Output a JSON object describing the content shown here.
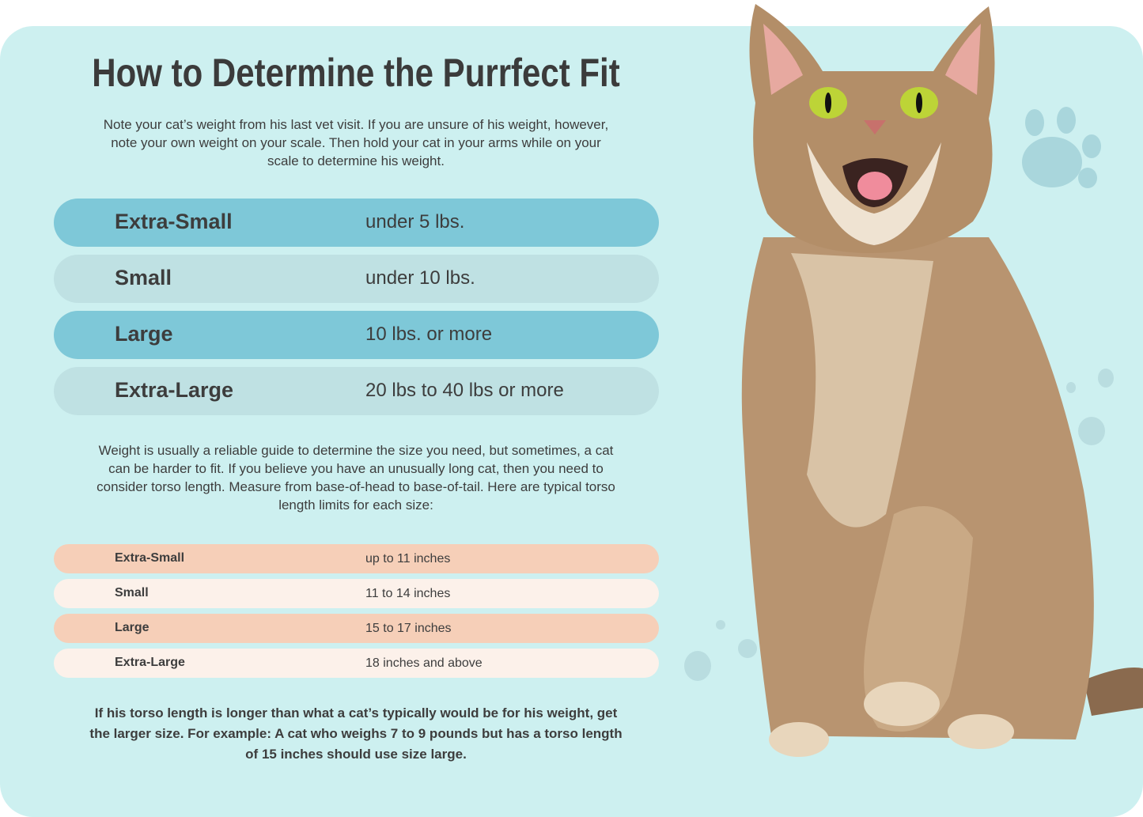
{
  "title": "How to Determine the Purrfect Fit",
  "intro": [
    "Note your cat’s weight from his last vet visit. If you are unsure of his weight, however,",
    "note your own weight on your scale. Then hold your cat in your arms while on your",
    "scale to determine his weight."
  ],
  "weight_table": [
    {
      "size": "Extra-Small",
      "weight": "under 5 lbs."
    },
    {
      "size": "Small",
      "weight": "under 10 lbs."
    },
    {
      "size": "Large",
      "weight": "10 lbs. or more"
    },
    {
      "size": "Extra-Large",
      "weight": "20 lbs to 40 lbs or more"
    }
  ],
  "torso_intro": [
    "Weight is usually a reliable guide to determine the size you need, but sometimes, a cat",
    "can be harder to fit. If you believe you have an unusually long cat, then you need to",
    "consider torso length. Measure from base-of-head to base-of-tail. Here are typical torso",
    "length limits for each size:"
  ],
  "torso_table": [
    {
      "size": "Extra-Small",
      "length": "up to 11 inches"
    },
    {
      "size": "Small",
      "length": "11 to 14 inches"
    },
    {
      "size": "Large",
      "length": "15 to 17 inches"
    },
    {
      "size": "Extra-Large",
      "length": "18 inches and above"
    }
  ],
  "note": [
    "If his torso length is longer than what a cat’s typically would be for his weight, get",
    "the larger size. For example: A cat who weighs 7 to 9 pounds but has a torso length",
    "of 15 inches should use size large."
  ],
  "colors": {
    "panel": "#cdf0f0",
    "weight_dark": "#7ec8d8",
    "weight_light": "#bfe1e3",
    "torso_peach": "#f6cfb8",
    "torso_cream": "#fcf1ea"
  },
  "images": [
    "tabby-cat-photo",
    "paw-print-icon"
  ]
}
